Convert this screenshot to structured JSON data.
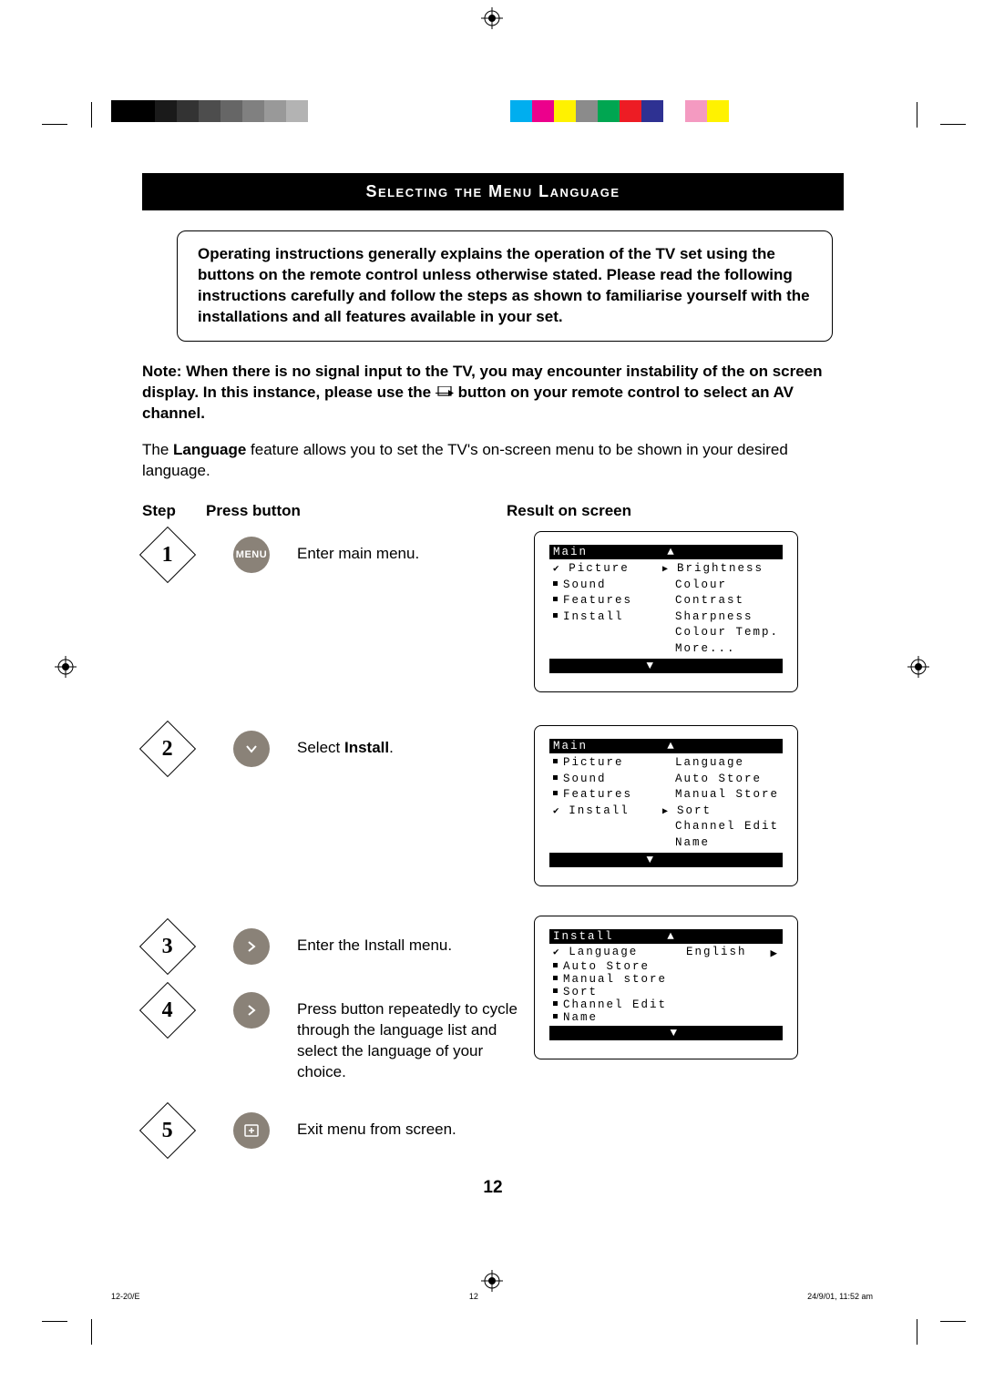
{
  "registration": {
    "gray_ramp": [
      "#000000",
      "#000000",
      "#1a1a1a",
      "#333333",
      "#4d4d4d",
      "#666666",
      "#808080",
      "#999999",
      "#b3b3b3",
      "#ffffff"
    ],
    "color_bar": [
      "#00aeef",
      "#ec008c",
      "#fff200",
      "#8b8b8b",
      "#00a651",
      "#ed1c24",
      "#2e3192",
      "#ffffff",
      "#f49ac1",
      "#fff200"
    ]
  },
  "title": "Selecting the Menu Language",
  "intro": "Operating instructions generally explains the operation of the TV set using the buttons on the remote control unless otherwise stated. Please read the following instructions carefully and follow the steps as shown to familiarise yourself with the installations and all features available in your set.",
  "note_pre": "Note: When there is no signal input to the TV, you may encounter instability of the on screen display. In this instance, please use the ",
  "note_post": " button on your remote control to select an AV channel.",
  "desc_pre": "The ",
  "desc_bold": "Language",
  "desc_post": " feature allows you to set the TV's on-screen menu to be shown in your desired language.",
  "headers": {
    "step": "Step",
    "press": "Press button",
    "result": "Result on screen"
  },
  "steps": {
    "s1": {
      "num": "1",
      "btn": "MENU",
      "text": "Enter main menu."
    },
    "s2": {
      "num": "2",
      "text_pre": "Select ",
      "text_bold": "Install",
      "text_post": "."
    },
    "s3": {
      "num": "3",
      "text": "Enter the Install menu."
    },
    "s4": {
      "num": "4",
      "text": "Press button repeatedly to cycle through the language list and select the language of your choice."
    },
    "s5": {
      "num": "5",
      "text": "Exit menu from screen."
    }
  },
  "osd1": {
    "header": "Main",
    "left": [
      {
        "label": "Picture",
        "sel": true
      },
      {
        "label": "Sound",
        "sel": false
      },
      {
        "label": "Features",
        "sel": false
      },
      {
        "label": "Install",
        "sel": false
      }
    ],
    "right": [
      {
        "label": "Brightness",
        "arrow": true
      },
      {
        "label": "Colour",
        "arrow": false
      },
      {
        "label": "Contrast",
        "arrow": false
      },
      {
        "label": "Sharpness",
        "arrow": false
      },
      {
        "label": "Colour Temp.",
        "arrow": false
      },
      {
        "label": "More...",
        "arrow": false
      }
    ]
  },
  "osd2": {
    "header": "Main",
    "left": [
      {
        "label": "Picture",
        "sel": false
      },
      {
        "label": "Sound",
        "sel": false
      },
      {
        "label": "Features",
        "sel": false
      },
      {
        "label": "Install",
        "sel": true
      }
    ],
    "right": [
      {
        "label": "Language",
        "arrow": false
      },
      {
        "label": "Auto Store",
        "arrow": false
      },
      {
        "label": "Manual Store",
        "arrow": false
      },
      {
        "label": "Sort",
        "arrow": true
      },
      {
        "label": "Channel Edit",
        "arrow": false
      },
      {
        "label": "Name",
        "arrow": false
      }
    ]
  },
  "osd3": {
    "header": "Install",
    "lang_label": "Language",
    "lang_value": "English",
    "items": [
      "Auto Store",
      "Manual store",
      "Sort",
      "Channel Edit",
      "Name"
    ]
  },
  "page_num": "12",
  "footer": {
    "left": "12-20/E",
    "mid": "12",
    "right": "24/9/01, 11:52 am"
  }
}
